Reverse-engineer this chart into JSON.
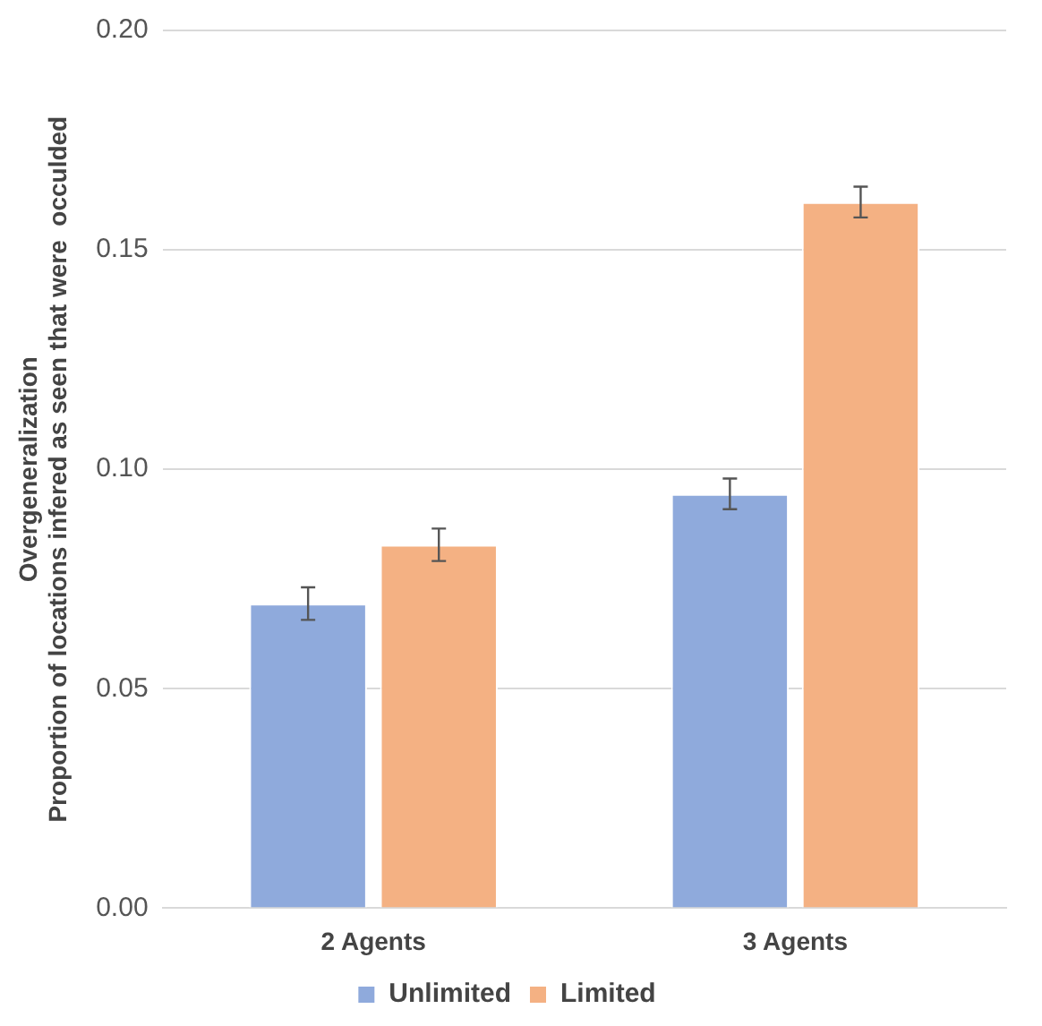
{
  "chart_data": {
    "type": "bar",
    "ylabel": "Overgeneralization\nProportion of locations infered as seen that were  occulded",
    "categories": [
      "2 Agents",
      "3 Agents"
    ],
    "series": [
      {
        "name": "Unlimited",
        "color": "#8faadc",
        "values": [
          0.0694,
          0.0944
        ],
        "errors": [
          0.0037,
          0.0035
        ]
      },
      {
        "name": "Limited",
        "color": "#f4b183",
        "values": [
          0.0828,
          0.1609
        ],
        "errors": [
          0.0037,
          0.0035
        ]
      }
    ],
    "ylim": [
      0,
      0.2
    ],
    "yticks": [
      {
        "value": 0,
        "label": "0.00"
      },
      {
        "value": 0.05,
        "label": "0.05"
      },
      {
        "value": 0.1,
        "label": "0.10"
      },
      {
        "value": 0.15,
        "label": "0.15"
      },
      {
        "value": 0.2,
        "label": "0.20"
      }
    ],
    "grid": "y",
    "legend": "bottom"
  }
}
